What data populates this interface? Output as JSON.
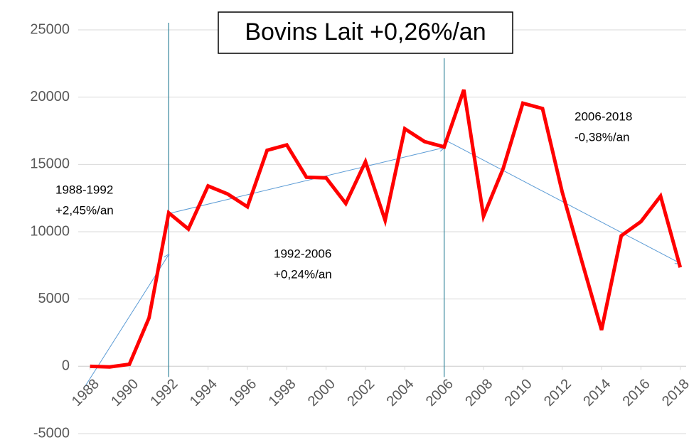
{
  "chart_data": {
    "type": "line",
    "title": "Bovins Lait +0,26%/an",
    "x": [
      1988,
      1989,
      1990,
      1991,
      1992,
      1993,
      1994,
      1995,
      1996,
      1997,
      1998,
      1999,
      2000,
      2001,
      2002,
      2003,
      2004,
      2005,
      2006,
      2007,
      2008,
      2009,
      2010,
      2011,
      2012,
      2013,
      2014,
      2015,
      2016,
      2017,
      2018
    ],
    "series": [
      {
        "color": "#ff0000",
        "values": [
          0,
          -50,
          150,
          3600,
          11400,
          10200,
          13400,
          12800,
          11850,
          16050,
          16450,
          14050,
          14000,
          12100,
          15200,
          10850,
          17650,
          16700,
          16300,
          20550,
          11150,
          14700,
          19550,
          19150,
          12950,
          7800,
          2700,
          9700,
          10750,
          12650,
          7350
        ]
      }
    ],
    "xlim": [
      1987.4,
      2018.3
    ],
    "xticks": [
      1988,
      1990,
      1992,
      1994,
      1996,
      1998,
      2000,
      2002,
      2004,
      2006,
      2008,
      2010,
      2012,
      2014,
      2016,
      2018
    ],
    "ylim": [
      -5000,
      25000
    ],
    "yticks": [
      -5000,
      0,
      5000,
      10000,
      15000,
      20000,
      25000
    ],
    "grid": true,
    "vlines": [
      1992,
      2006
    ],
    "trend_lines": [
      {
        "color": "#5b9bd5",
        "x": [
          1987.7,
          1992
        ],
        "y": [
          -1600,
          8300
        ]
      },
      {
        "color": "#5b9bd5",
        "x": [
          1992,
          2006
        ],
        "y": [
          11350,
          16250
        ]
      },
      {
        "color": "#5b9bd5",
        "x": [
          2006,
          2018
        ],
        "y": [
          16850,
          7650
        ]
      }
    ],
    "annotations": [
      [
        "1988-1992",
        "+2,45%/an"
      ],
      [
        "1992-2006",
        "+0,24%/an"
      ],
      [
        "2006-2018",
        "-0,38%/an"
      ]
    ]
  }
}
